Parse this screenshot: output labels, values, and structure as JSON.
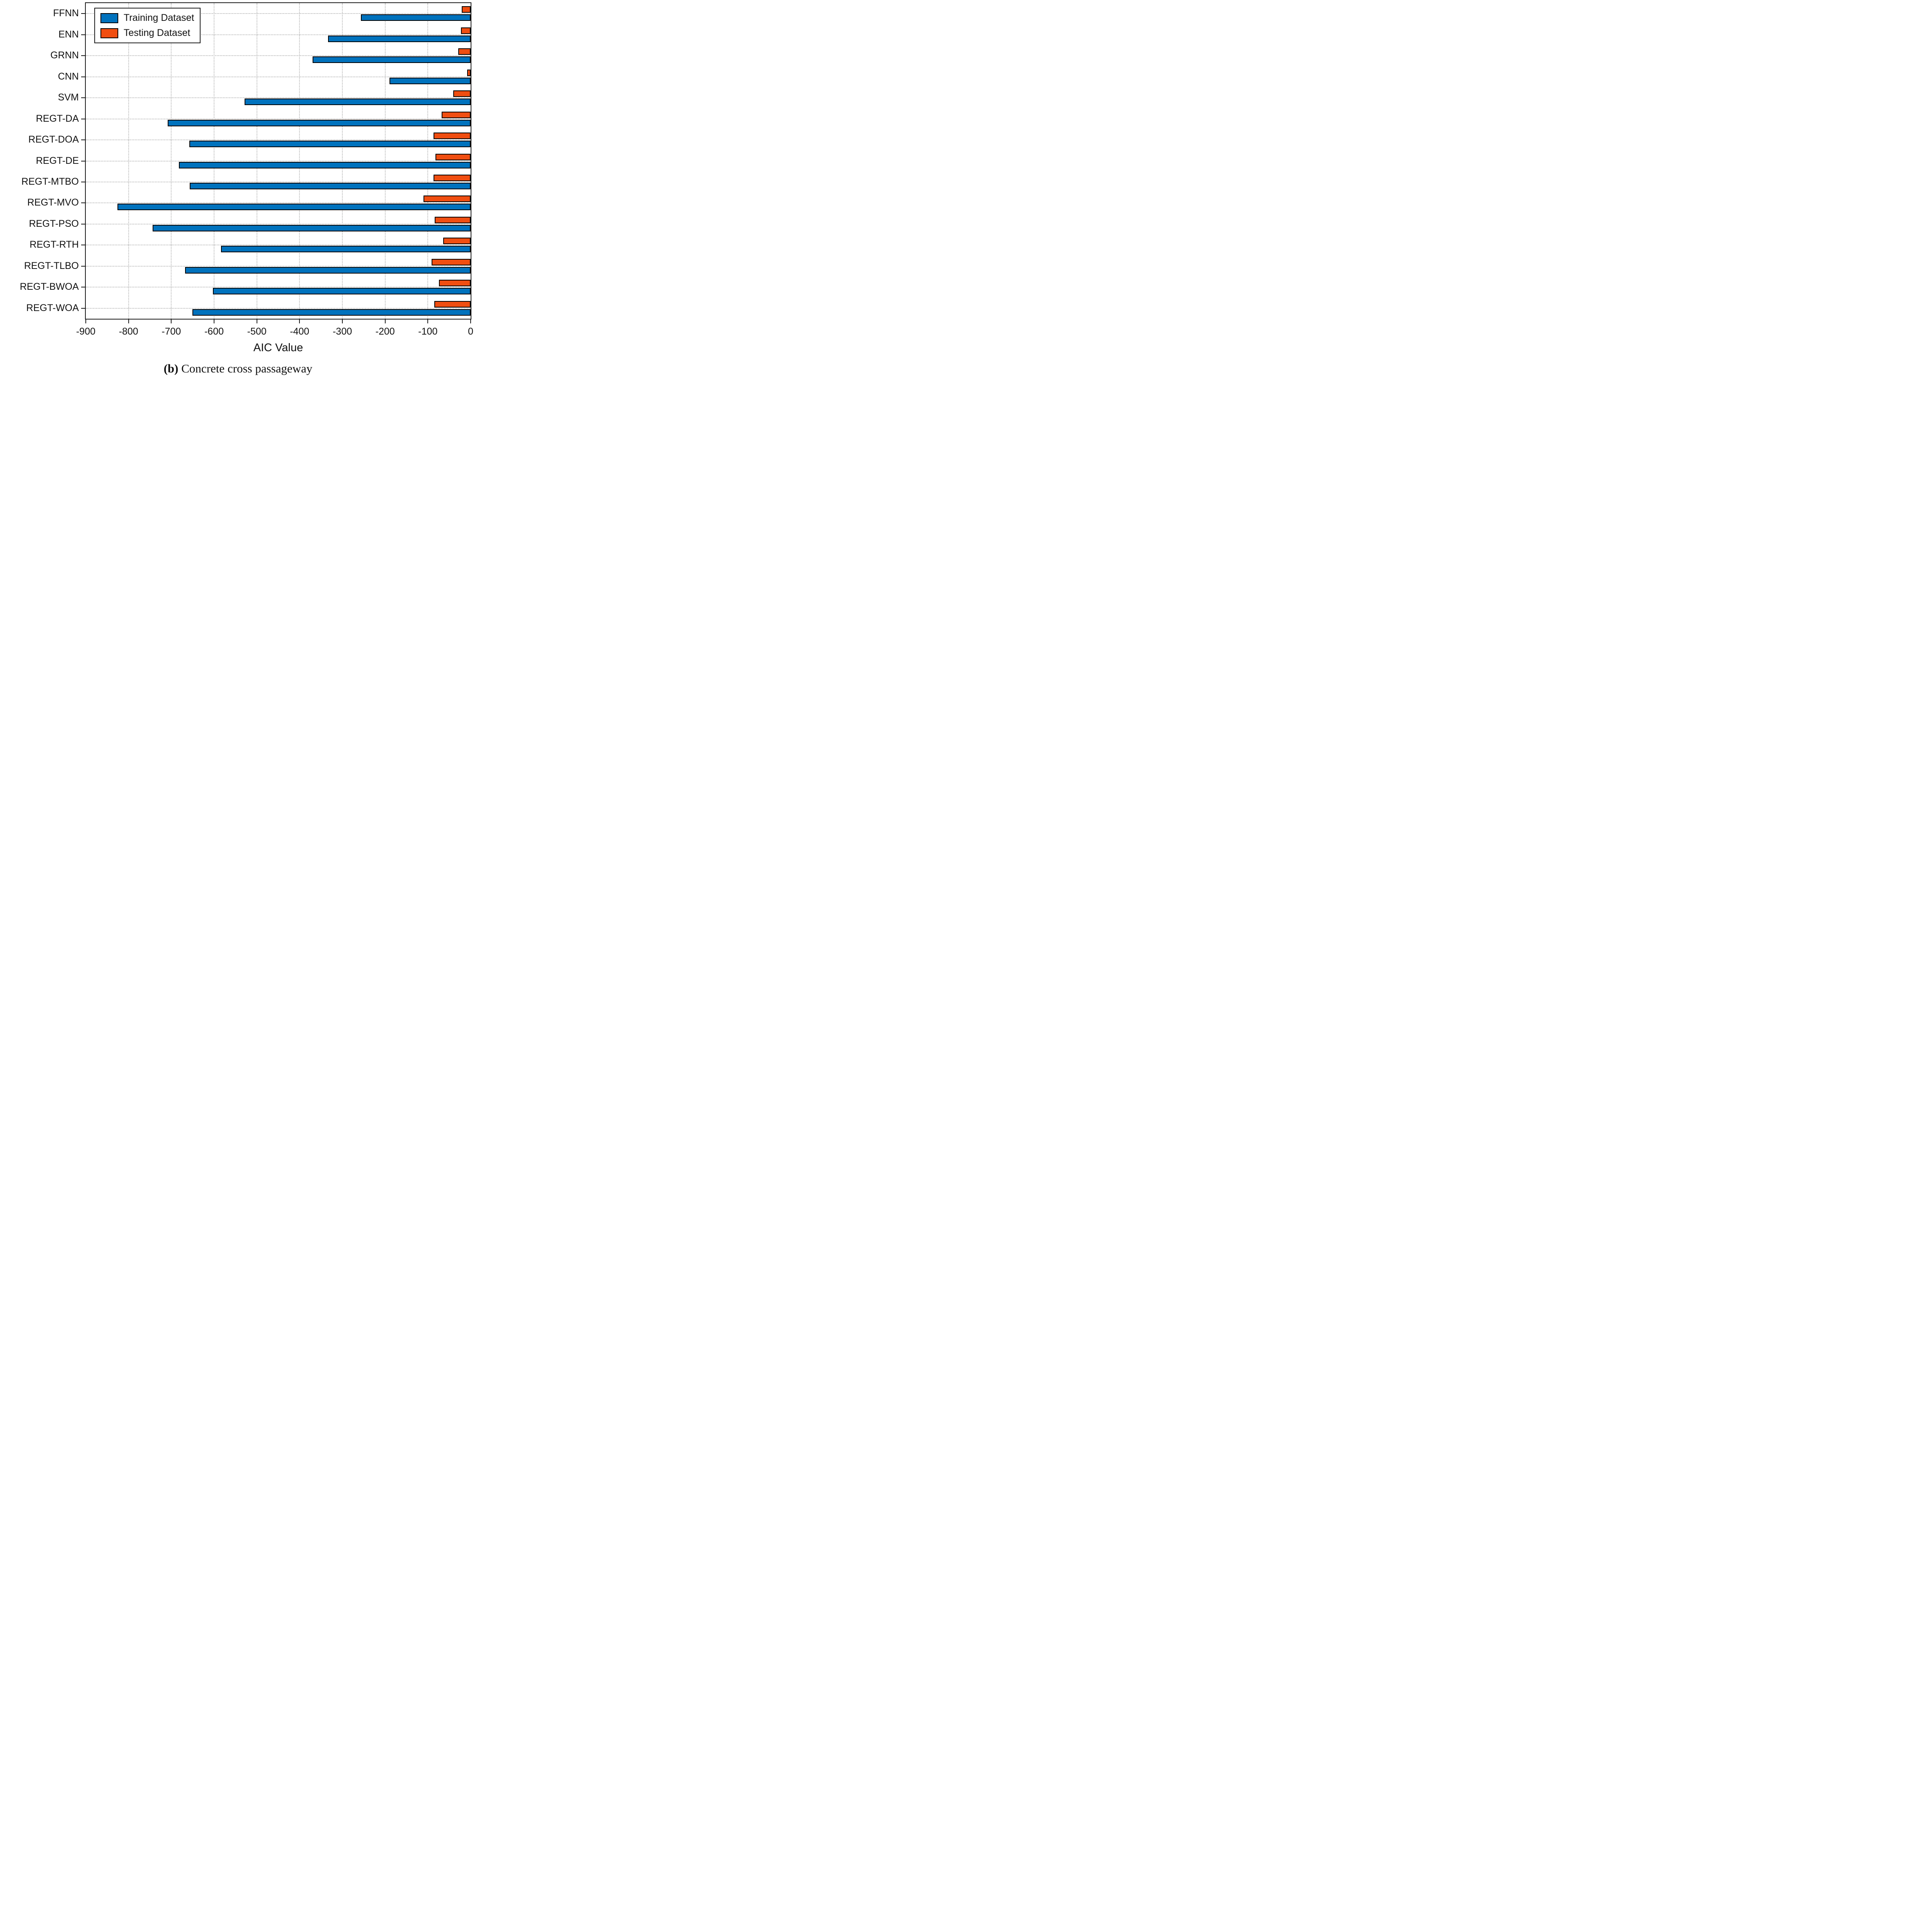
{
  "chart_data": {
    "type": "bar",
    "orientation": "horizontal",
    "xlabel": "AIC Value",
    "caption": {
      "bold_part": "(b)",
      "text_part": " Concrete cross passageway"
    },
    "categories": [
      "FFNN",
      "ENN",
      "GRNN",
      "CNN",
      "SVM",
      "REGT-DA",
      "REGT-DOA",
      "REGT-DE",
      "REGT-MTBO",
      "REGT-MVO",
      "REGT-PSO",
      "REGT-RTH",
      "REGT-TLBO",
      "REGT-BWOA",
      "REGT-WOA"
    ],
    "series": [
      {
        "name": "Training Dataset",
        "color": "#0072BD",
        "values": [
          -257,
          -333,
          -370,
          -190,
          -529,
          -708,
          -658,
          -682,
          -657,
          -826,
          -744,
          -584,
          -668,
          -603,
          -651
        ]
      },
      {
        "name": "Testing Dataset",
        "color": "#F04E11",
        "values": [
          -21,
          -23,
          -29,
          -8,
          -41,
          -68,
          -87,
          -82,
          -87,
          -110,
          -84,
          -64,
          -91,
          -74,
          -85
        ]
      }
    ],
    "xlim": [
      -900,
      0
    ],
    "xticks": [
      -900,
      -800,
      -700,
      -600,
      -500,
      -400,
      -300,
      -200,
      -100,
      0
    ],
    "grid": true,
    "legend_position": "top-left",
    "bar_border_color": "#000000",
    "axis_color": "#1a1a1a"
  }
}
